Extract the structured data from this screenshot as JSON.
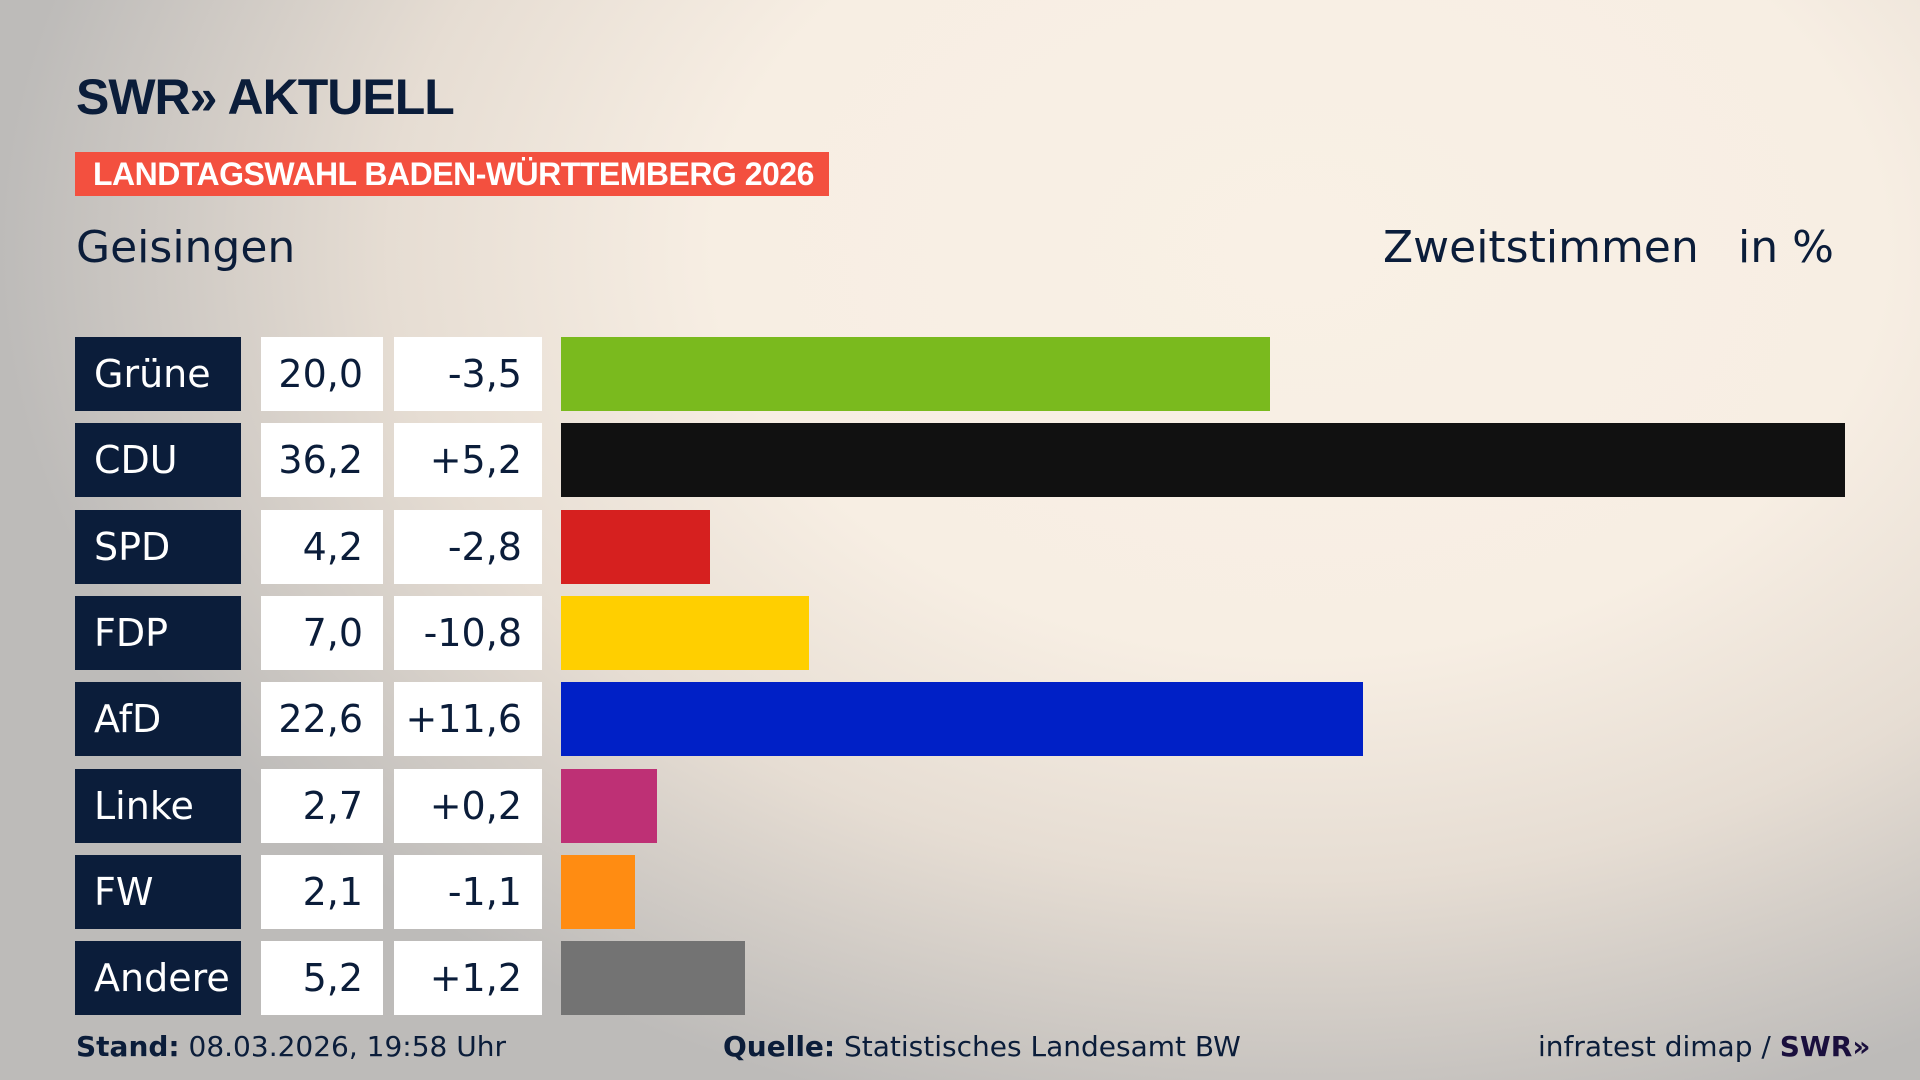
{
  "header": {
    "logo": "SWR» AKTUELL",
    "banner": "LANDTAGSWAHL BADEN-WÜRTTEMBERG 2026",
    "region": "Geisingen",
    "metric": "Zweitstimmen",
    "unit": "in %"
  },
  "chart_data": {
    "type": "bar",
    "orientation": "horizontal",
    "categories": [
      "Grüne",
      "CDU",
      "SPD",
      "FDP",
      "AfD",
      "Linke",
      "FW",
      "Andere"
    ],
    "values": [
      20.0,
      36.2,
      4.2,
      7.0,
      22.6,
      2.7,
      2.1,
      5.2
    ],
    "value_labels": [
      "20,0",
      "36,2",
      "4,2",
      "7,0",
      "22,6",
      "2,7",
      "2,1",
      "5,2"
    ],
    "diffs": [
      -3.5,
      5.2,
      -2.8,
      -10.8,
      11.6,
      0.2,
      -1.1,
      1.2
    ],
    "diff_labels": [
      "-3,5",
      "+5,2",
      "-2,8",
      "-10,8",
      "+11,6",
      "+0,2",
      "-1,1",
      "+1,2"
    ],
    "colors": [
      "#7aba1e",
      "#111111",
      "#d6201f",
      "#ffcf00",
      "#0020c6",
      "#be3075",
      "#ff8c12",
      "#737373"
    ],
    "xlim": [
      0,
      36.2
    ]
  },
  "footer": {
    "stand_label": "Stand:",
    "stand_value": "08.03.2026, 19:58 Uhr",
    "source_label": "Quelle:",
    "source_value": "Statistisches Landesamt BW",
    "credit": "infratest dimap / ",
    "credit_brand": "SWR»"
  }
}
